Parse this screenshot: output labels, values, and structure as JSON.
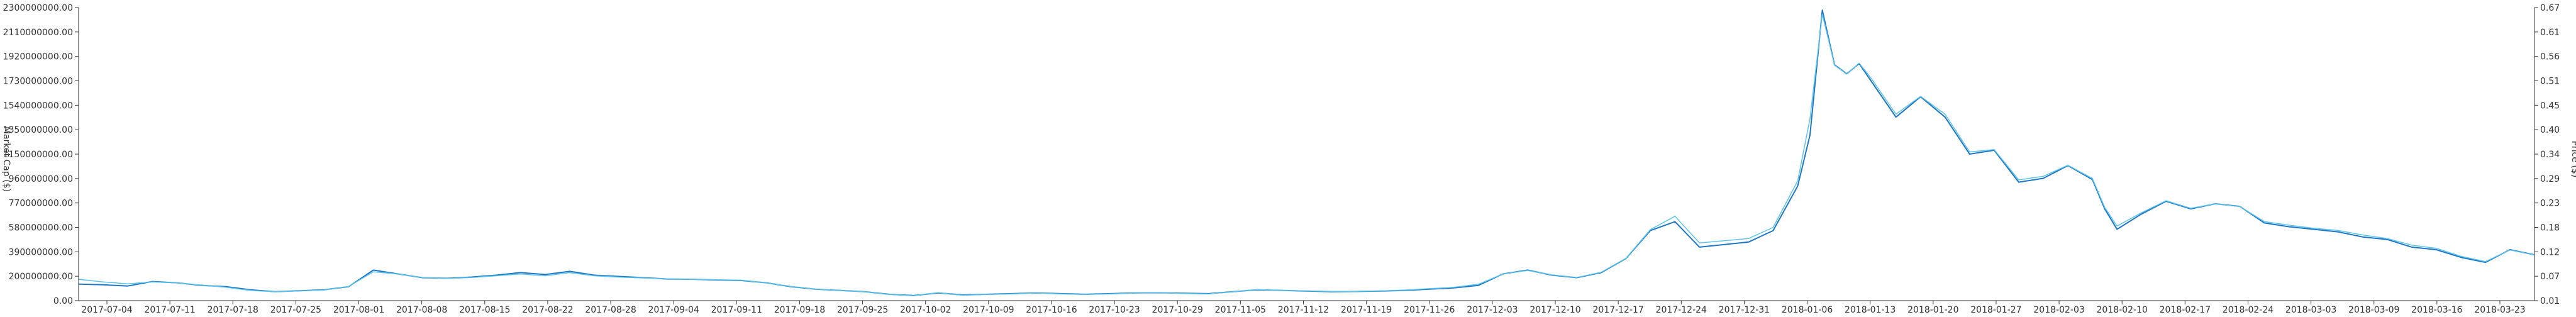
{
  "chart_data": {
    "type": "line",
    "left_axis_label": "Market Cap ($)",
    "right_axis_label": "Price ($)",
    "y_left_ticks": [
      "2300000000.00",
      "2110000000.00",
      "1920000000.00",
      "1730000000.00",
      "1540000000.00",
      "1350000000.00",
      "1150000000.00",
      "960000000.00",
      "770000000.00",
      "580000000.00",
      "390000000.00",
      "200000000.00",
      "0.00"
    ],
    "y_right_ticks": [
      "0.67",
      "0.61",
      "0.56",
      "0.51",
      "0.45",
      "0.40",
      "0.34",
      "0.29",
      "0.23",
      "0.18",
      "0.12",
      "0.07",
      "0.01"
    ],
    "x_ticks": [
      "2017-07-04",
      "2017-07-11",
      "2017-07-18",
      "2017-07-25",
      "2017-08-01",
      "2017-08-08",
      "2017-08-15",
      "2017-08-22",
      "2017-08-28",
      "2017-09-04",
      "2017-09-11",
      "2017-09-18",
      "2017-09-25",
      "2017-10-02",
      "2017-10-09",
      "2017-10-16",
      "2017-10-23",
      "2017-10-29",
      "2017-11-05",
      "2017-11-12",
      "2017-11-19",
      "2017-11-26",
      "2017-12-03",
      "2017-12-10",
      "2017-12-17",
      "2017-12-24",
      "2017-12-31",
      "2018-01-06",
      "2018-01-13",
      "2018-01-20",
      "2018-01-27",
      "2018-02-03",
      "2018-02-10",
      "2018-02-17",
      "2018-02-24",
      "2018-03-03",
      "2018-03-09",
      "2018-03-16",
      "2018-03-23"
    ],
    "y_left_range": [
      0,
      2300000000
    ],
    "y_right_range": [
      0.01,
      0.67
    ],
    "series": [
      {
        "color": "#1f77c4",
        "axis": "left",
        "values": [
          [
            0,
            130000000
          ],
          [
            2,
            125000000
          ],
          [
            4,
            115000000
          ],
          [
            6,
            150000000
          ],
          [
            8,
            140000000
          ],
          [
            10,
            120000000
          ],
          [
            12,
            110000000
          ],
          [
            14,
            85000000
          ],
          [
            16,
            70000000
          ],
          [
            18,
            78000000
          ],
          [
            20,
            85000000
          ],
          [
            22,
            110000000
          ],
          [
            24,
            240000000
          ],
          [
            26,
            210000000
          ],
          [
            28,
            180000000
          ],
          [
            30,
            175000000
          ],
          [
            32,
            185000000
          ],
          [
            34,
            200000000
          ],
          [
            36,
            220000000
          ],
          [
            38,
            205000000
          ],
          [
            40,
            230000000
          ],
          [
            42,
            200000000
          ],
          [
            44,
            190000000
          ],
          [
            46,
            180000000
          ],
          [
            48,
            170000000
          ],
          [
            50,
            168000000
          ],
          [
            52,
            162000000
          ],
          [
            54,
            158000000
          ],
          [
            56,
            140000000
          ],
          [
            58,
            110000000
          ],
          [
            60,
            90000000
          ],
          [
            62,
            80000000
          ],
          [
            64,
            70000000
          ],
          [
            66,
            50000000
          ],
          [
            68,
            40000000
          ],
          [
            70,
            60000000
          ],
          [
            72,
            45000000
          ],
          [
            74,
            50000000
          ],
          [
            76,
            55000000
          ],
          [
            78,
            60000000
          ],
          [
            80,
            55000000
          ],
          [
            82,
            50000000
          ],
          [
            84,
            55000000
          ],
          [
            86,
            60000000
          ],
          [
            88,
            62000000
          ],
          [
            90,
            58000000
          ],
          [
            92,
            55000000
          ],
          [
            94,
            70000000
          ],
          [
            96,
            85000000
          ],
          [
            98,
            80000000
          ],
          [
            100,
            75000000
          ],
          [
            102,
            70000000
          ],
          [
            104,
            72000000
          ],
          [
            106,
            75000000
          ],
          [
            108,
            80000000
          ],
          [
            110,
            90000000
          ],
          [
            112,
            100000000
          ],
          [
            114,
            120000000
          ],
          [
            116,
            210000000
          ],
          [
            118,
            240000000
          ],
          [
            120,
            200000000
          ],
          [
            122,
            180000000
          ],
          [
            124,
            220000000
          ],
          [
            126,
            330000000
          ],
          [
            128,
            550000000
          ],
          [
            130,
            620000000
          ],
          [
            132,
            420000000
          ],
          [
            134,
            440000000
          ],
          [
            136,
            460000000
          ],
          [
            138,
            550000000
          ],
          [
            140,
            900000000
          ],
          [
            141,
            1300000000
          ],
          [
            142,
            2280000000
          ],
          [
            143,
            1850000000
          ],
          [
            144,
            1780000000
          ],
          [
            145,
            1860000000
          ],
          [
            146,
            1720000000
          ],
          [
            148,
            1440000000
          ],
          [
            150,
            1600000000
          ],
          [
            152,
            1440000000
          ],
          [
            154,
            1150000000
          ],
          [
            156,
            1180000000
          ],
          [
            158,
            930000000
          ],
          [
            160,
            960000000
          ],
          [
            162,
            1060000000
          ],
          [
            164,
            950000000
          ],
          [
            165,
            720000000
          ],
          [
            166,
            560000000
          ],
          [
            168,
            680000000
          ],
          [
            170,
            780000000
          ],
          [
            172,
            720000000
          ],
          [
            174,
            760000000
          ],
          [
            176,
            740000000
          ],
          [
            178,
            610000000
          ],
          [
            180,
            580000000
          ],
          [
            182,
            560000000
          ],
          [
            184,
            540000000
          ],
          [
            186,
            500000000
          ],
          [
            188,
            480000000
          ],
          [
            190,
            420000000
          ],
          [
            192,
            400000000
          ],
          [
            194,
            340000000
          ],
          [
            196,
            300000000
          ],
          [
            198,
            400000000
          ],
          [
            200,
            360000000
          ]
        ]
      },
      {
        "color": "#5bc4e8",
        "axis": "right",
        "values": [
          [
            0,
            0.058
          ],
          [
            2,
            0.052
          ],
          [
            4,
            0.048
          ],
          [
            6,
            0.052
          ],
          [
            8,
            0.05
          ],
          [
            10,
            0.045
          ],
          [
            12,
            0.04
          ],
          [
            14,
            0.033
          ],
          [
            16,
            0.03
          ],
          [
            18,
            0.032
          ],
          [
            20,
            0.034
          ],
          [
            22,
            0.042
          ],
          [
            24,
            0.075
          ],
          [
            26,
            0.07
          ],
          [
            28,
            0.062
          ],
          [
            30,
            0.06
          ],
          [
            32,
            0.062
          ],
          [
            34,
            0.066
          ],
          [
            36,
            0.07
          ],
          [
            38,
            0.066
          ],
          [
            40,
            0.073
          ],
          [
            42,
            0.066
          ],
          [
            44,
            0.063
          ],
          [
            46,
            0.061
          ],
          [
            48,
            0.059
          ],
          [
            50,
            0.058
          ],
          [
            52,
            0.057
          ],
          [
            54,
            0.056
          ],
          [
            56,
            0.05
          ],
          [
            58,
            0.042
          ],
          [
            60,
            0.036
          ],
          [
            62,
            0.033
          ],
          [
            64,
            0.03
          ],
          [
            66,
            0.024
          ],
          [
            68,
            0.021
          ],
          [
            70,
            0.028
          ],
          [
            72,
            0.022
          ],
          [
            74,
            0.024
          ],
          [
            76,
            0.025
          ],
          [
            78,
            0.027
          ],
          [
            80,
            0.025
          ],
          [
            82,
            0.024
          ],
          [
            84,
            0.025
          ],
          [
            86,
            0.027
          ],
          [
            88,
            0.028
          ],
          [
            90,
            0.026
          ],
          [
            92,
            0.025
          ],
          [
            94,
            0.03
          ],
          [
            96,
            0.035
          ],
          [
            98,
            0.033
          ],
          [
            100,
            0.032
          ],
          [
            102,
            0.031
          ],
          [
            104,
            0.031
          ],
          [
            106,
            0.032
          ],
          [
            108,
            0.034
          ],
          [
            110,
            0.037
          ],
          [
            112,
            0.04
          ],
          [
            114,
            0.047
          ],
          [
            116,
            0.07
          ],
          [
            118,
            0.078
          ],
          [
            120,
            0.068
          ],
          [
            122,
            0.062
          ],
          [
            124,
            0.074
          ],
          [
            126,
            0.105
          ],
          [
            128,
            0.17
          ],
          [
            130,
            0.2
          ],
          [
            132,
            0.14
          ],
          [
            134,
            0.145
          ],
          [
            136,
            0.15
          ],
          [
            138,
            0.175
          ],
          [
            140,
            0.28
          ],
          [
            141,
            0.42
          ],
          [
            142,
            0.655
          ],
          [
            143,
            0.54
          ],
          [
            144,
            0.52
          ],
          [
            145,
            0.545
          ],
          [
            146,
            0.51
          ],
          [
            148,
            0.43
          ],
          [
            150,
            0.47
          ],
          [
            152,
            0.43
          ],
          [
            154,
            0.345
          ],
          [
            156,
            0.35
          ],
          [
            158,
            0.282
          ],
          [
            160,
            0.29
          ],
          [
            162,
            0.315
          ],
          [
            164,
            0.285
          ],
          [
            165,
            0.22
          ],
          [
            166,
            0.178
          ],
          [
            168,
            0.208
          ],
          [
            170,
            0.235
          ],
          [
            172,
            0.218
          ],
          [
            174,
            0.228
          ],
          [
            176,
            0.222
          ],
          [
            178,
            0.188
          ],
          [
            180,
            0.18
          ],
          [
            182,
            0.173
          ],
          [
            184,
            0.168
          ],
          [
            186,
            0.158
          ],
          [
            188,
            0.15
          ],
          [
            190,
            0.135
          ],
          [
            192,
            0.128
          ],
          [
            194,
            0.11
          ],
          [
            196,
            0.098
          ],
          [
            198,
            0.124
          ],
          [
            200,
            0.113
          ]
        ]
      }
    ]
  }
}
